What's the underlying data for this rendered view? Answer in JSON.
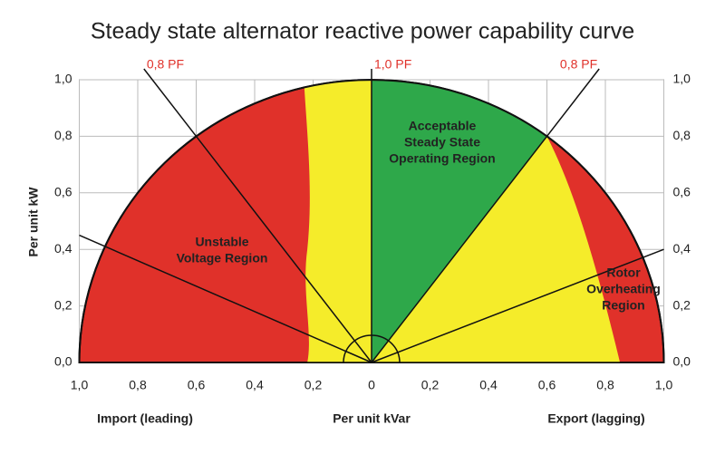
{
  "chart_data": {
    "type": "capability",
    "title": "Steady state alternator reactive power capability curve",
    "y_label": "Per unit kW",
    "x_label": "Per unit kVar",
    "x_left_label": "Import (leading)",
    "x_right_label": "Export (lagging)",
    "xlim": [
      -1,
      1
    ],
    "ylim": [
      0,
      1
    ],
    "xticks": [
      {
        "value": -1,
        "label": "1,0"
      },
      {
        "value": -0.8,
        "label": "0,8"
      },
      {
        "value": -0.6,
        "label": "0,6"
      },
      {
        "value": -0.4,
        "label": "0,4"
      },
      {
        "value": -0.2,
        "label": "0,2"
      },
      0,
      {
        "value": 0.2,
        "label": "0,2"
      },
      {
        "value": 0.4,
        "label": "0,4"
      },
      {
        "value": 0.6,
        "label": "0,6"
      },
      {
        "value": 0.8,
        "label": "0,8"
      },
      {
        "value": 1,
        "label": "1,0"
      }
    ],
    "yticks": [
      {
        "value": 0,
        "label": "0,0"
      },
      {
        "value": 0.2,
        "label": "0,2"
      },
      {
        "value": 0.4,
        "label": "0,4"
      },
      {
        "value": 0.6,
        "label": "0,6"
      },
      {
        "value": 0.8,
        "label": "0,8"
      },
      {
        "value": 1,
        "label": "1,0"
      }
    ],
    "grid": true,
    "pf_lines": [
      {
        "label": "0,8 PF",
        "value": 0.8,
        "side": "leading"
      },
      {
        "label": "1,0 PF",
        "value": 1.0,
        "side": "unity"
      },
      {
        "label": "0,8 PF",
        "value": 0.8,
        "side": "lagging"
      }
    ],
    "pf_label_color": "#e0312a",
    "regions": [
      {
        "name": [
          "Unstable",
          "Voltage Region"
        ],
        "color": "#e0312a"
      },
      {
        "name": [
          "Acceptable",
          "Steady State",
          "Operating Region"
        ],
        "color": "#2ea84a"
      },
      {
        "name": [
          "Rotor",
          "Overheating",
          "Region"
        ],
        "color": "#e0312a"
      }
    ],
    "margin_color": "#f5ec2a"
  }
}
